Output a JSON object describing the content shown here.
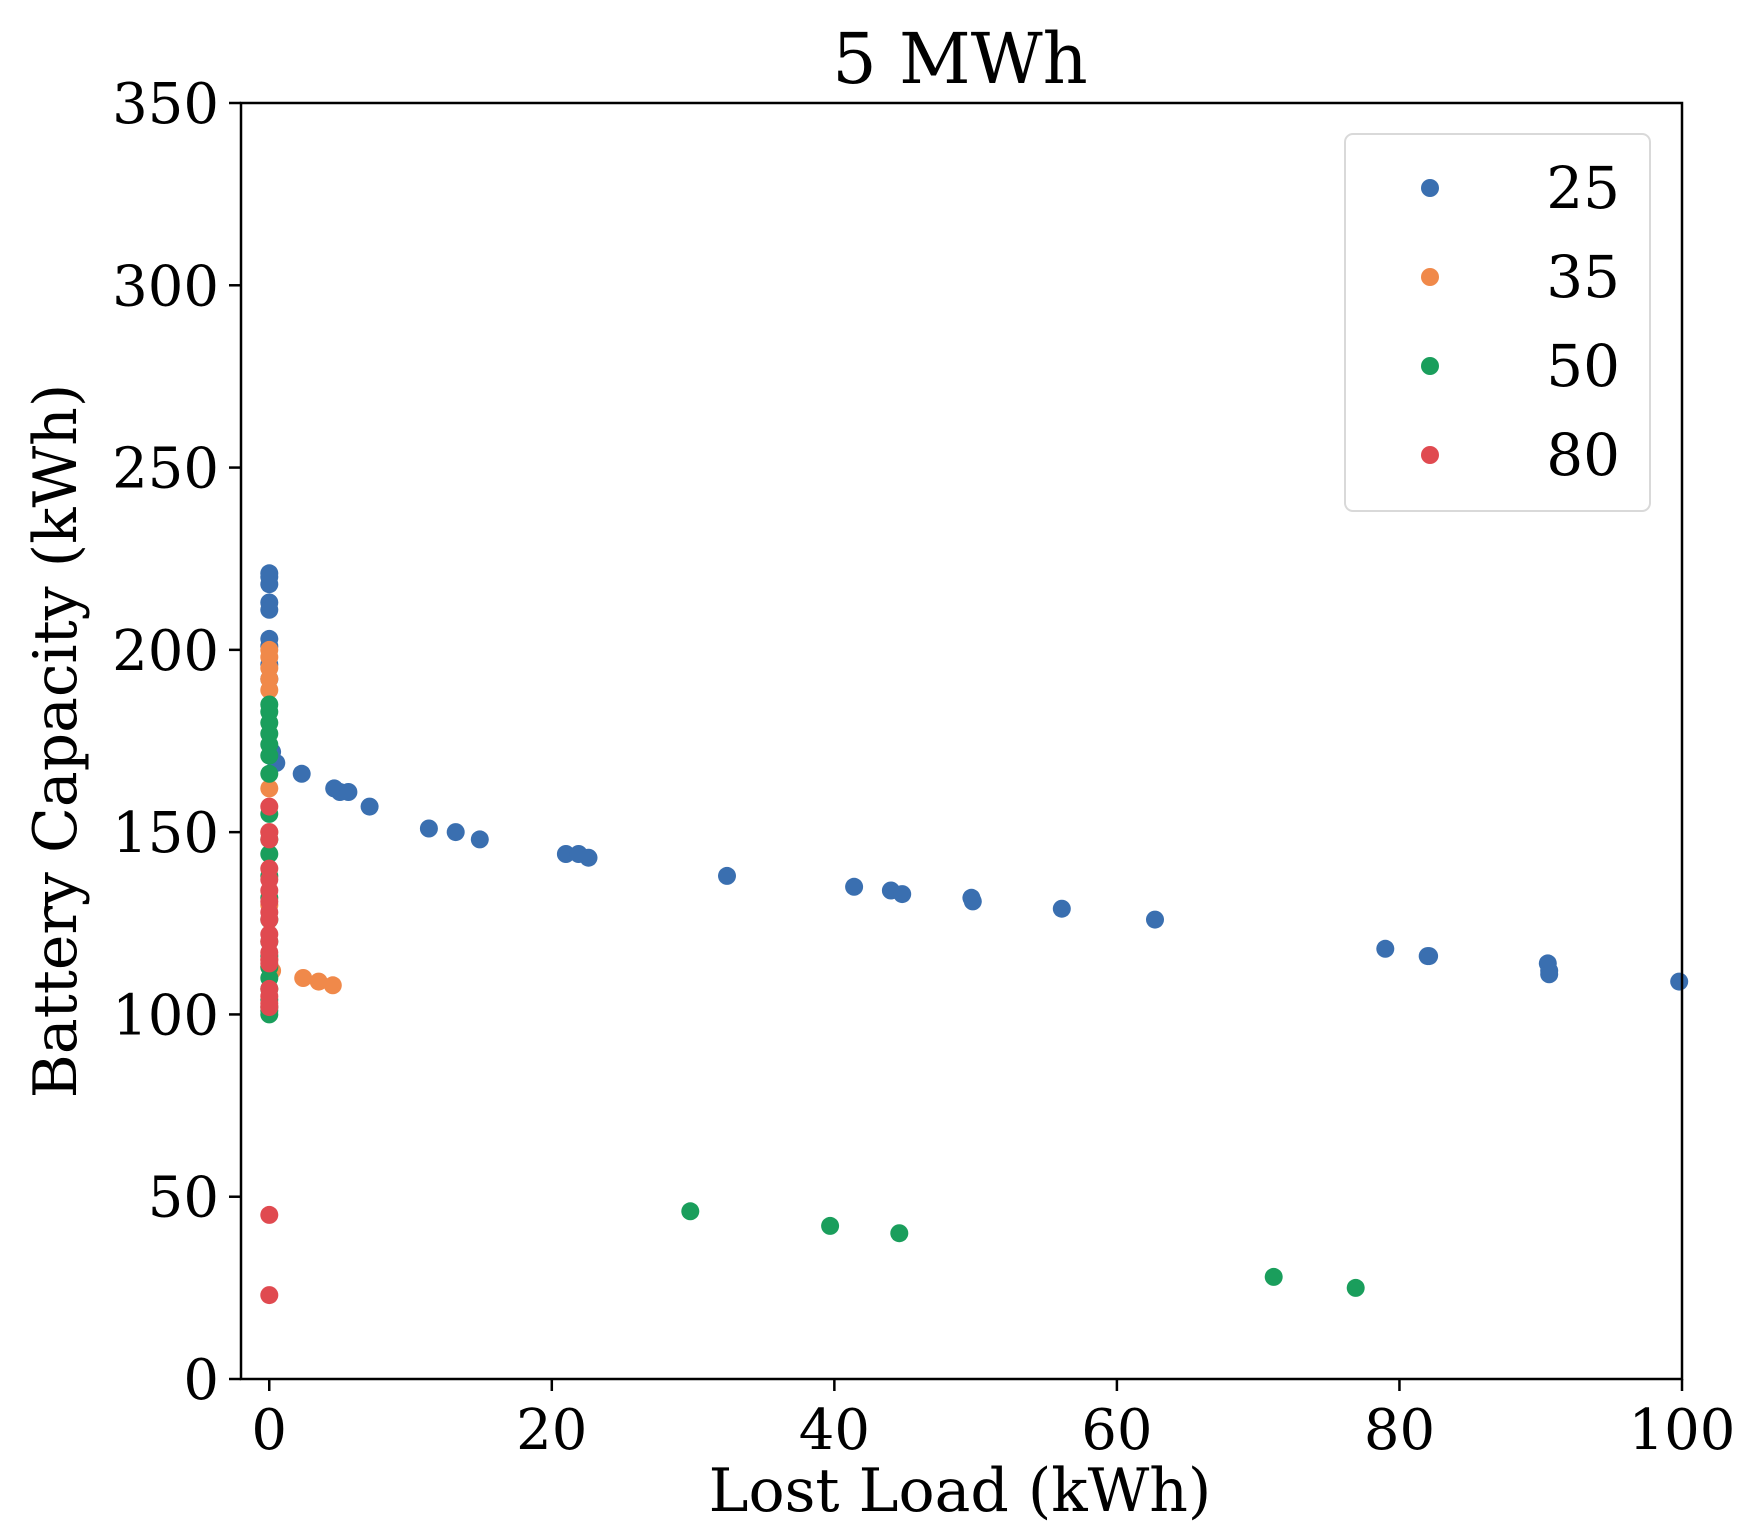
{
  "chart_data": {
    "type": "scatter",
    "title": "5 MWh",
    "xlabel": "Lost Load (kWh)",
    "ylabel": "Battery Capacity (kWh)",
    "xlim": [
      -2,
      100
    ],
    "ylim": [
      0,
      350
    ],
    "xticks": [
      0,
      20,
      40,
      60,
      80,
      100
    ],
    "yticks": [
      0,
      50,
      100,
      150,
      200,
      250,
      300,
      350
    ],
    "grid": false,
    "legend_position": "top-right",
    "series": [
      {
        "name": "25",
        "color": "#3a6fb0",
        "x": [
          0,
          0,
          0,
          0,
          0,
          0,
          0,
          0,
          0,
          0.2,
          0.5,
          2.3,
          4.6,
          5.0,
          5.6,
          7.1,
          11.3,
          13.2,
          14.9,
          21.0,
          21.9,
          22.6,
          32.4,
          41.4,
          44.0,
          44.8,
          49.7,
          49.8,
          56.1,
          62.7,
          79.0,
          82.0,
          82.1,
          90.5,
          90.6,
          90.6,
          99.8
        ],
        "y": [
          221,
          220,
          218,
          213,
          211,
          203,
          201,
          196,
          192,
          172,
          169,
          166,
          162,
          161,
          161,
          157,
          151,
          150,
          148,
          144,
          144,
          143,
          138,
          135,
          134,
          133,
          132,
          131,
          129,
          126,
          118,
          116,
          116,
          114,
          112,
          111,
          109
        ]
      },
      {
        "name": "35",
        "color": "#f0894a",
        "x": [
          0,
          0,
          0,
          0,
          0,
          0,
          0,
          0,
          0,
          0,
          0.2,
          2.4,
          3.5,
          4.5
        ],
        "y": [
          200,
          198,
          195,
          192,
          189,
          162,
          150,
          130,
          115,
          113,
          112,
          110,
          109,
          108
        ]
      },
      {
        "name": "50",
        "color": "#1a9e5c",
        "x": [
          0,
          0,
          0,
          0,
          0,
          0,
          0,
          0,
          0,
          0,
          0,
          0,
          0,
          0,
          0,
          0,
          0,
          0,
          0,
          0,
          0,
          0,
          29.8,
          39.7,
          44.6,
          71.1,
          76.9
        ],
        "y": [
          185,
          183,
          180,
          177,
          174,
          171,
          166,
          155,
          148,
          144,
          138,
          132,
          126,
          120,
          116,
          113,
          110,
          107,
          104,
          102,
          101,
          100,
          46,
          42,
          40,
          28,
          25
        ]
      },
      {
        "name": "80",
        "color": "#e04a50",
        "x": [
          0,
          0,
          0,
          0,
          0,
          0,
          0,
          0,
          0,
          0,
          0,
          0,
          0,
          0,
          0,
          0,
          0,
          0,
          0,
          0
        ],
        "y": [
          157,
          150,
          148,
          140,
          137,
          134,
          131,
          128,
          126,
          122,
          120,
          117,
          115,
          114,
          107,
          105,
          103,
          102,
          45,
          23
        ]
      }
    ]
  }
}
